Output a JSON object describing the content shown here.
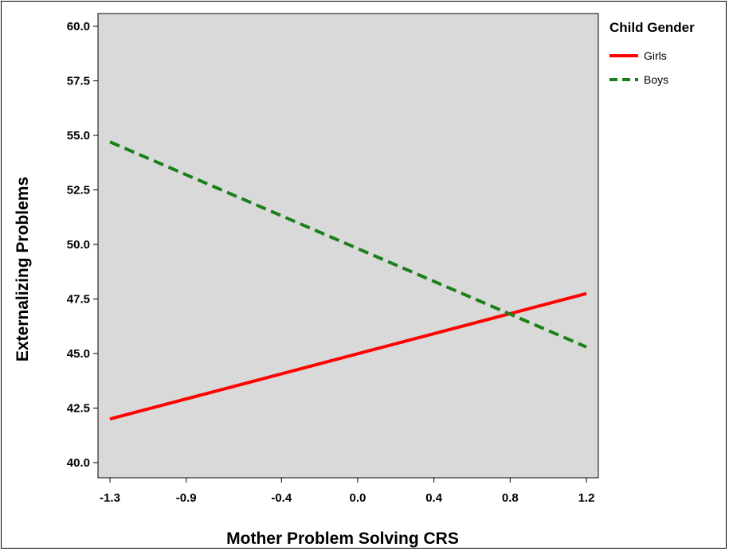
{
  "chart_data": {
    "type": "line",
    "xlabel": "Mother Problem Solving CRS",
    "ylabel": "Externalizing Problems",
    "x_ticks": [
      "-1.3",
      "-0.9",
      "-0.4",
      "0.0",
      "0.4",
      "0.8",
      "1.2"
    ],
    "y_ticks": [
      "40.0",
      "42.5",
      "45.0",
      "47.5",
      "50.0",
      "52.5",
      "55.0",
      "57.5",
      "60.0"
    ],
    "xlim": [
      -1.3,
      1.2
    ],
    "ylim": [
      40.0,
      60.0
    ],
    "legend": {
      "title": "Child Gender",
      "placement": "top-right outside"
    },
    "background": "#d9d9d9",
    "grid": false,
    "series": [
      {
        "name": "Girls",
        "color": "#ff0000",
        "dash": "solid",
        "x": [
          -1.3,
          1.2
        ],
        "y": [
          42.0,
          47.75
        ]
      },
      {
        "name": "Boys",
        "color": "#1a801a",
        "dash": "dashed",
        "x": [
          -1.3,
          1.2
        ],
        "y": [
          54.7,
          45.3
        ]
      }
    ]
  }
}
